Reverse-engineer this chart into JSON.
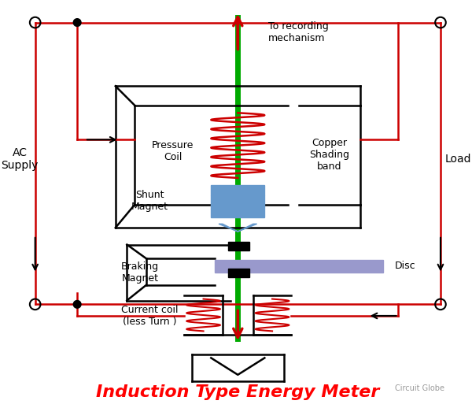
{
  "title": "Induction Type Energy Meter",
  "title_color": "#FF0000",
  "title_fontsize": 16,
  "bg_color": "#FFFFFF",
  "watermark": "Circuit Globe",
  "fig_width": 6.0,
  "fig_height": 5.18,
  "dpi": 100,
  "labels": {
    "ac_supply": "AC\nSupply",
    "load": "Load",
    "pressure_coil": "Pressure\nCoil",
    "copper_shading": "Copper\nShading\nband",
    "shunt_magnet": "Shunt\nMagnet",
    "braking_magnet": "Braking\nMagnet",
    "disc": "Disc",
    "current_coil": "Current coil\n(less Turn )",
    "to_recording": "To recording\nmechanism"
  },
  "colors": {
    "black": "#000000",
    "red": "#CC0000",
    "green": "#00AA00",
    "blue_disc": "#9999CC",
    "blue_shading": "#6699CC",
    "coil_red": "#CC0000"
  }
}
